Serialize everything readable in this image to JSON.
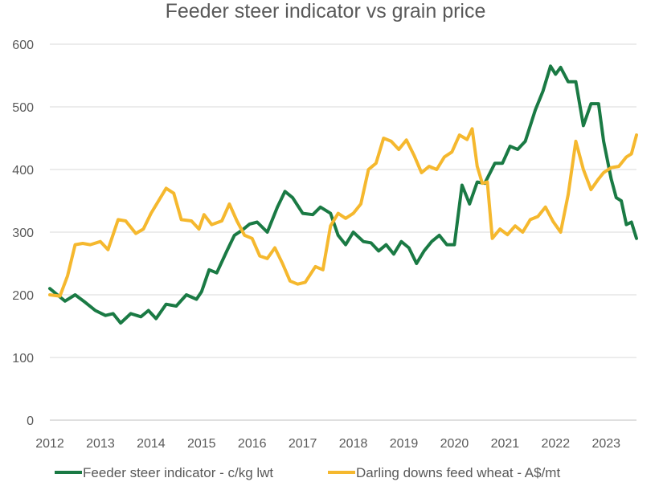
{
  "chart_data": {
    "type": "line",
    "title": "Feeder steer indicator vs grain price",
    "xlabel": "",
    "ylabel": "",
    "xlim": [
      2012,
      2023.6
    ],
    "ylim": [
      0,
      600
    ],
    "yticks": [
      0,
      100,
      200,
      300,
      400,
      500,
      600
    ],
    "xticks": [
      2012,
      2013,
      2014,
      2015,
      2016,
      2017,
      2018,
      2019,
      2020,
      2021,
      2022,
      2023
    ],
    "x_tick_labels": [
      "2012",
      "2013",
      "2014",
      "2015",
      "2016",
      "2017",
      "2018",
      "2019",
      "2020",
      "2021",
      "2022",
      "2023"
    ],
    "y_tick_labels": [
      "0",
      "100",
      "200",
      "300",
      "400",
      "500",
      "600"
    ],
    "grid": true,
    "legend_position": "bottom",
    "series": [
      {
        "name": "Feeder steer indicator - c/kg lwt",
        "color": "#1a7a44",
        "points": [
          [
            2012.0,
            210
          ],
          [
            2012.15,
            200
          ],
          [
            2012.3,
            190
          ],
          [
            2012.5,
            200
          ],
          [
            2012.7,
            188
          ],
          [
            2012.9,
            175
          ],
          [
            2013.1,
            167
          ],
          [
            2013.25,
            170
          ],
          [
            2013.4,
            155
          ],
          [
            2013.6,
            170
          ],
          [
            2013.8,
            165
          ],
          [
            2013.95,
            175
          ],
          [
            2014.1,
            162
          ],
          [
            2014.3,
            185
          ],
          [
            2014.5,
            182
          ],
          [
            2014.7,
            200
          ],
          [
            2014.9,
            193
          ],
          [
            2015.0,
            205
          ],
          [
            2015.15,
            240
          ],
          [
            2015.3,
            235
          ],
          [
            2015.5,
            270
          ],
          [
            2015.65,
            295
          ],
          [
            2015.8,
            303
          ],
          [
            2015.95,
            313
          ],
          [
            2016.1,
            316
          ],
          [
            2016.3,
            300
          ],
          [
            2016.5,
            340
          ],
          [
            2016.65,
            365
          ],
          [
            2016.8,
            355
          ],
          [
            2017.0,
            330
          ],
          [
            2017.2,
            328
          ],
          [
            2017.35,
            340
          ],
          [
            2017.55,
            330
          ],
          [
            2017.7,
            295
          ],
          [
            2017.85,
            280
          ],
          [
            2018.0,
            300
          ],
          [
            2018.2,
            285
          ],
          [
            2018.35,
            283
          ],
          [
            2018.5,
            270
          ],
          [
            2018.65,
            280
          ],
          [
            2018.8,
            265
          ],
          [
            2018.95,
            285
          ],
          [
            2019.1,
            275
          ],
          [
            2019.25,
            250
          ],
          [
            2019.4,
            270
          ],
          [
            2019.55,
            285
          ],
          [
            2019.7,
            295
          ],
          [
            2019.85,
            280
          ],
          [
            2020.0,
            280
          ],
          [
            2020.15,
            375
          ],
          [
            2020.3,
            345
          ],
          [
            2020.45,
            380
          ],
          [
            2020.6,
            378
          ],
          [
            2020.8,
            410
          ],
          [
            2020.95,
            410
          ],
          [
            2021.1,
            437
          ],
          [
            2021.25,
            432
          ],
          [
            2021.4,
            445
          ],
          [
            2021.6,
            495
          ],
          [
            2021.75,
            525
          ],
          [
            2021.9,
            565
          ],
          [
            2022.0,
            552
          ],
          [
            2022.1,
            563
          ],
          [
            2022.25,
            540
          ],
          [
            2022.4,
            540
          ],
          [
            2022.55,
            470
          ],
          [
            2022.7,
            505
          ],
          [
            2022.85,
            505
          ],
          [
            2022.95,
            445
          ],
          [
            2023.1,
            385
          ],
          [
            2023.2,
            355
          ],
          [
            2023.3,
            350
          ],
          [
            2023.4,
            312
          ],
          [
            2023.5,
            316
          ],
          [
            2023.6,
            290
          ]
        ]
      },
      {
        "name": "Darling downs feed wheat - A$/mt",
        "color": "#f5b82e",
        "points": [
          [
            2012.0,
            200
          ],
          [
            2012.2,
            198
          ],
          [
            2012.35,
            230
          ],
          [
            2012.5,
            280
          ],
          [
            2012.65,
            282
          ],
          [
            2012.8,
            280
          ],
          [
            2013.0,
            285
          ],
          [
            2013.15,
            272
          ],
          [
            2013.35,
            320
          ],
          [
            2013.5,
            318
          ],
          [
            2013.7,
            298
          ],
          [
            2013.85,
            305
          ],
          [
            2014.0,
            330
          ],
          [
            2014.15,
            350
          ],
          [
            2014.3,
            370
          ],
          [
            2014.45,
            362
          ],
          [
            2014.6,
            320
          ],
          [
            2014.8,
            318
          ],
          [
            2014.95,
            305
          ],
          [
            2015.05,
            328
          ],
          [
            2015.2,
            312
          ],
          [
            2015.4,
            318
          ],
          [
            2015.55,
            345
          ],
          [
            2015.7,
            318
          ],
          [
            2015.85,
            295
          ],
          [
            2016.0,
            290
          ],
          [
            2016.15,
            262
          ],
          [
            2016.3,
            258
          ],
          [
            2016.45,
            275
          ],
          [
            2016.6,
            250
          ],
          [
            2016.75,
            222
          ],
          [
            2016.9,
            217
          ],
          [
            2017.05,
            220
          ],
          [
            2017.25,
            245
          ],
          [
            2017.4,
            240
          ],
          [
            2017.55,
            310
          ],
          [
            2017.7,
            330
          ],
          [
            2017.85,
            322
          ],
          [
            2018.0,
            330
          ],
          [
            2018.15,
            345
          ],
          [
            2018.3,
            400
          ],
          [
            2018.45,
            410
          ],
          [
            2018.6,
            450
          ],
          [
            2018.75,
            445
          ],
          [
            2018.9,
            432
          ],
          [
            2019.05,
            447
          ],
          [
            2019.2,
            423
          ],
          [
            2019.35,
            395
          ],
          [
            2019.5,
            405
          ],
          [
            2019.65,
            400
          ],
          [
            2019.8,
            420
          ],
          [
            2019.95,
            428
          ],
          [
            2020.1,
            455
          ],
          [
            2020.25,
            448
          ],
          [
            2020.35,
            465
          ],
          [
            2020.45,
            405
          ],
          [
            2020.55,
            378
          ],
          [
            2020.65,
            380
          ],
          [
            2020.75,
            290
          ],
          [
            2020.9,
            305
          ],
          [
            2021.05,
            296
          ],
          [
            2021.2,
            310
          ],
          [
            2021.35,
            300
          ],
          [
            2021.5,
            320
          ],
          [
            2021.65,
            325
          ],
          [
            2021.8,
            340
          ],
          [
            2021.95,
            317
          ],
          [
            2022.1,
            300
          ],
          [
            2022.25,
            360
          ],
          [
            2022.4,
            445
          ],
          [
            2022.55,
            400
          ],
          [
            2022.7,
            368
          ],
          [
            2022.85,
            385
          ],
          [
            2022.95,
            395
          ],
          [
            2023.1,
            403
          ],
          [
            2023.25,
            405
          ],
          [
            2023.4,
            420
          ],
          [
            2023.5,
            425
          ],
          [
            2023.6,
            455
          ]
        ]
      }
    ]
  }
}
